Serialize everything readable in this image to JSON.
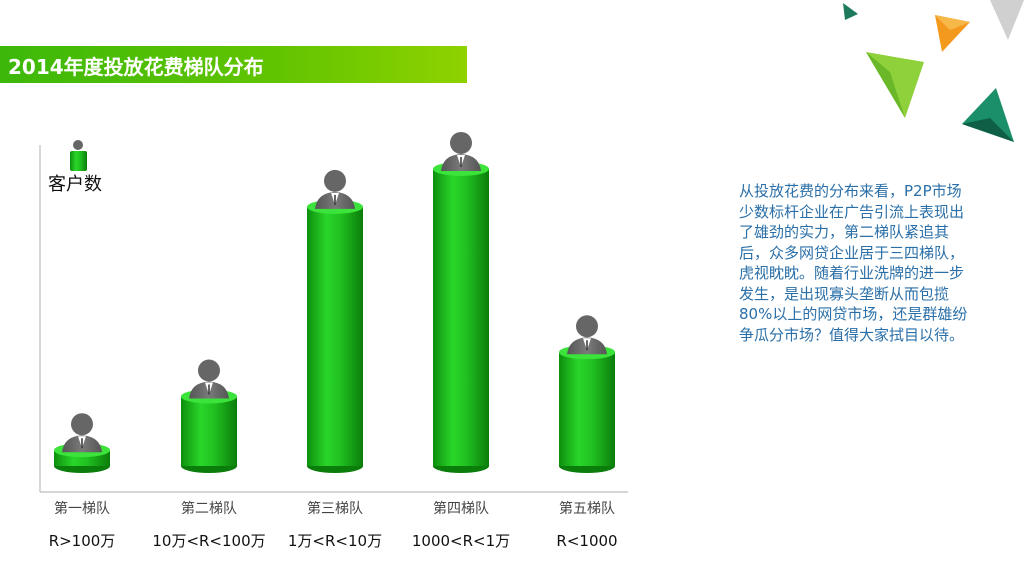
{
  "slide": {
    "title": "2014年度投放花费梯队分布",
    "commentary": "从投放花费的分布来看，P2P市场少数标杆企业在广告引流上表现出了雄劲的实力，第二梯队紧追其后，众多网贷企业居于三四梯队，虎视眈眈。随着行业洗牌的进一步发生，是出现寡头垄断从而包揽80%以上的网贷市场，还是群雄纷争瓜分市场？值得大家拭目以待。"
  },
  "chart_data": {
    "type": "bar",
    "title": "",
    "xlabel": "",
    "ylabel": "客户数",
    "categories": [
      "第一梯队",
      "第二梯队",
      "第三梯队",
      "第四梯队",
      "第五梯队"
    ],
    "category_ranges": [
      "R>100万",
      "10万<R<100万",
      "1万<R<10万",
      "1000<R<1万",
      "R<1000"
    ],
    "values": [
      5,
      22,
      82,
      94,
      36
    ],
    "ylim": [
      0,
      100
    ],
    "grid": false,
    "bar_color": "#22b81c"
  }
}
